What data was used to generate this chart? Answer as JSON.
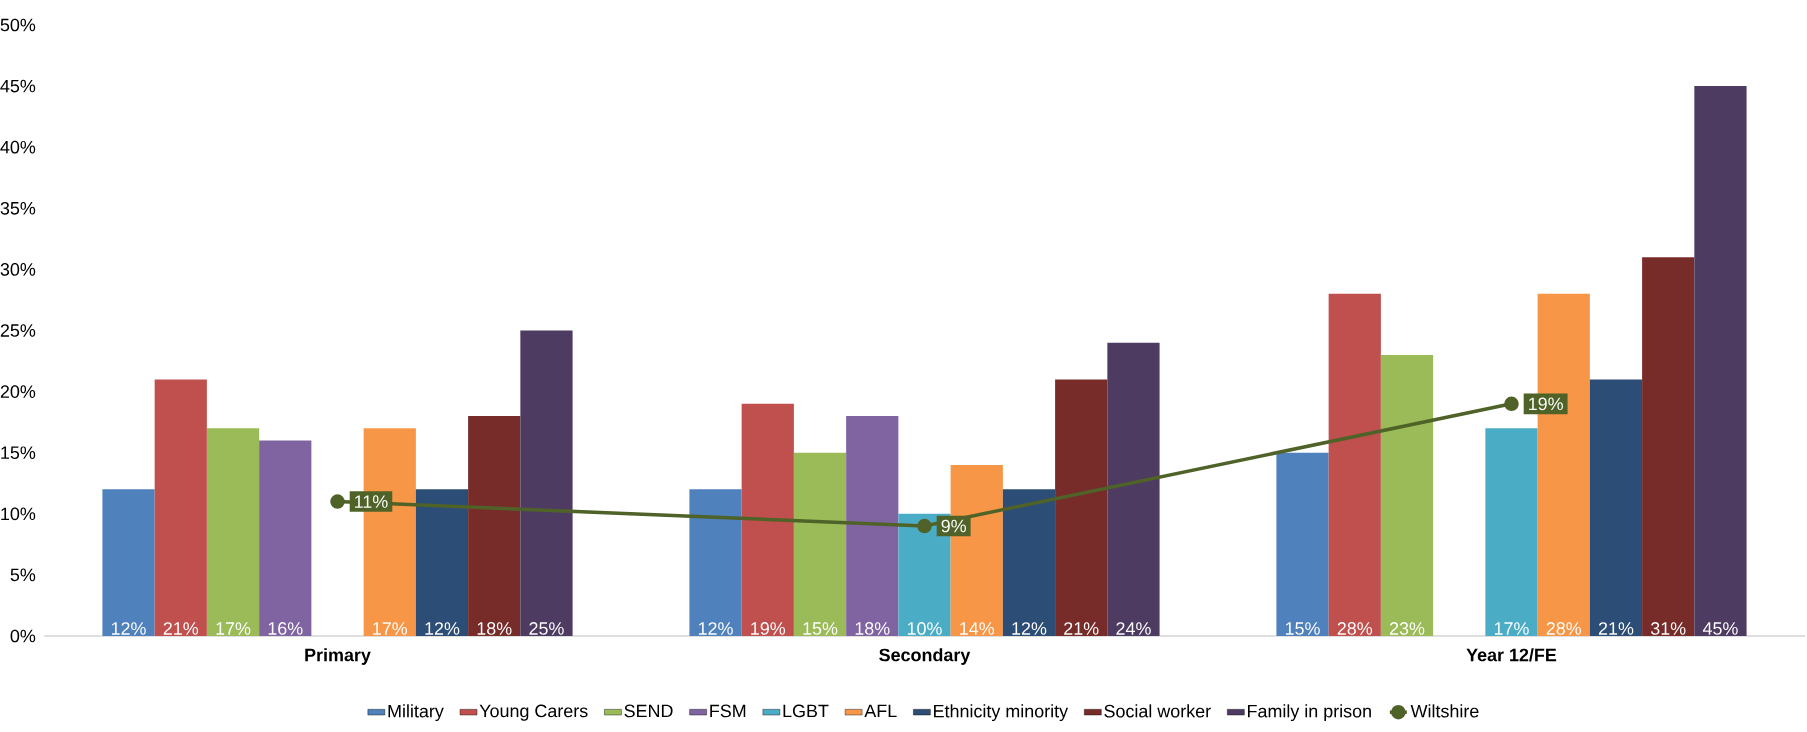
{
  "chart_data": {
    "type": "bar",
    "categories": [
      "Primary",
      "Secondary",
      "Year 12/FE"
    ],
    "ylim": [
      0,
      50
    ],
    "yticks": [
      {
        "value": 0,
        "label": "0%"
      },
      {
        "value": 5,
        "label": "5%"
      },
      {
        "value": 10,
        "label": "10%"
      },
      {
        "value": 15,
        "label": "15%"
      },
      {
        "value": 20,
        "label": "20%"
      },
      {
        "value": 25,
        "label": "25%"
      },
      {
        "value": 30,
        "label": "30%"
      },
      {
        "value": 35,
        "label": "35%"
      },
      {
        "value": 40,
        "label": "40%"
      },
      {
        "value": 45,
        "label": "45%"
      },
      {
        "value": 50,
        "label": "50%"
      }
    ],
    "legend": "bottom",
    "series": [
      {
        "name": "Military",
        "color": "#4f81bd",
        "values": [
          12,
          12,
          15
        ],
        "value_labels": [
          "12%",
          "12%",
          "15%"
        ]
      },
      {
        "name": "Young Carers",
        "color": "#c0504d",
        "values": [
          21,
          19,
          28
        ],
        "value_labels": [
          "21%",
          "19%",
          "28%"
        ]
      },
      {
        "name": "SEND",
        "color": "#9bbb59",
        "values": [
          17,
          15,
          23
        ],
        "value_labels": [
          "17%",
          "15%",
          "23%"
        ]
      },
      {
        "name": "FSM",
        "color": "#8064a2",
        "values": [
          16,
          18,
          null
        ],
        "value_labels": [
          "16%",
          "18%",
          null
        ]
      },
      {
        "name": "LGBT",
        "color": "#4bacc6",
        "values": [
          null,
          10,
          17
        ],
        "value_labels": [
          null,
          "10%",
          "17%"
        ]
      },
      {
        "name": "AFL",
        "color": "#f79646",
        "values": [
          17,
          14,
          28
        ],
        "value_labels": [
          "17%",
          "14%",
          "28%"
        ]
      },
      {
        "name": "Ethnicity minority",
        "color": "#2c4d75",
        "values": [
          12,
          12,
          21
        ],
        "value_labels": [
          "12%",
          "12%",
          "21%"
        ]
      },
      {
        "name": "Social worker",
        "color": "#772c2a",
        "values": [
          18,
          21,
          31
        ],
        "value_labels": [
          "18%",
          "21%",
          "31%"
        ]
      },
      {
        "name": "Family in prison",
        "color": "#4d3b62",
        "values": [
          25,
          24,
          45
        ],
        "value_labels": [
          "25%",
          "24%",
          "45%"
        ]
      },
      {
        "name": "Wiltshire",
        "type": "line",
        "color": "#4f6228",
        "marker": "circle",
        "line_style": "solid",
        "values": [
          11,
          9,
          19
        ],
        "value_labels": [
          "11%",
          "9%",
          "19%"
        ]
      }
    ]
  }
}
